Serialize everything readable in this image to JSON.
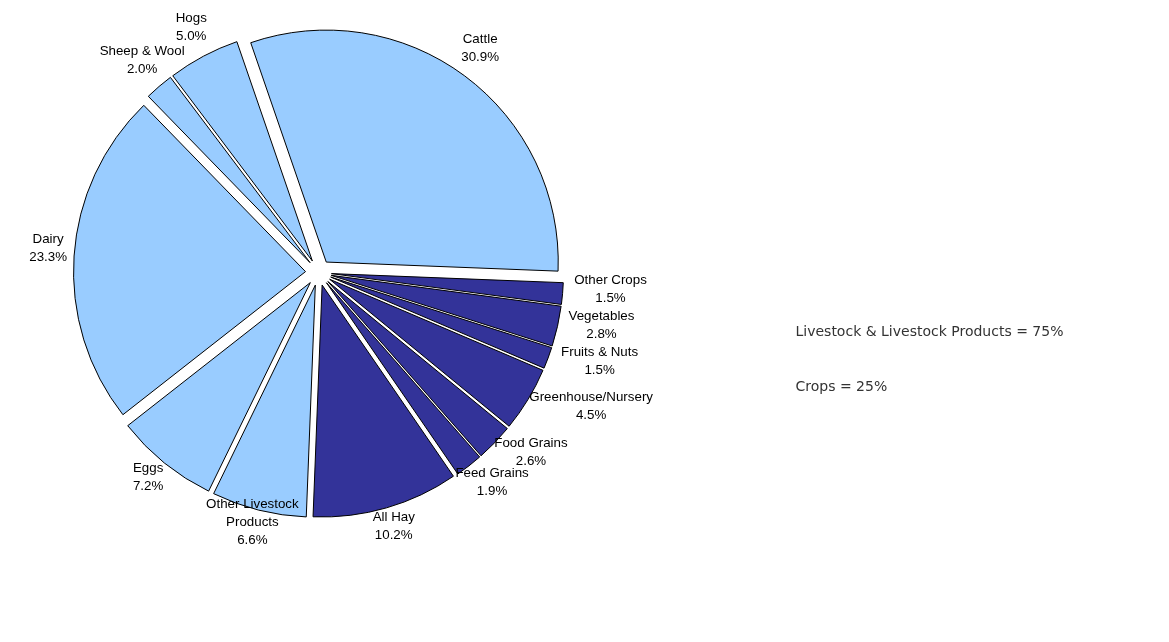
{
  "chart_data": {
    "type": "pie",
    "categories": [
      "Cattle",
      "Other Crops",
      "Vegetables",
      "Fruits & Nuts",
      "Greenhouse/Nursery",
      "Food Grains",
      "Feed Grains",
      "All Hay",
      "Other Livestock Products",
      "Eggs",
      "Dairy",
      "Sheep & Wool",
      "Hogs"
    ],
    "values": [
      30.9,
      1.5,
      2.8,
      1.5,
      4.5,
      2.6,
      1.9,
      10.2,
      6.6,
      7.2,
      23.3,
      2.0,
      5.0
    ],
    "colors": [
      "#99ccff",
      "#333399",
      "#333399",
      "#333399",
      "#333399",
      "#333399",
      "#333399",
      "#333399",
      "#99ccff",
      "#99ccff",
      "#99ccff",
      "#99ccff",
      "#99ccff"
    ],
    "value_labels": [
      "30.9%",
      "1.5%",
      "2.8%",
      "1.5%",
      "4.5%",
      "2.6%",
      "1.9%",
      "10.2%",
      "6.6%",
      "7.2%",
      "23.3%",
      "2.0%",
      "5.0%"
    ],
    "annotations": [
      "Livestock & Livestock Products = 75%",
      "Crops = 25%"
    ]
  }
}
